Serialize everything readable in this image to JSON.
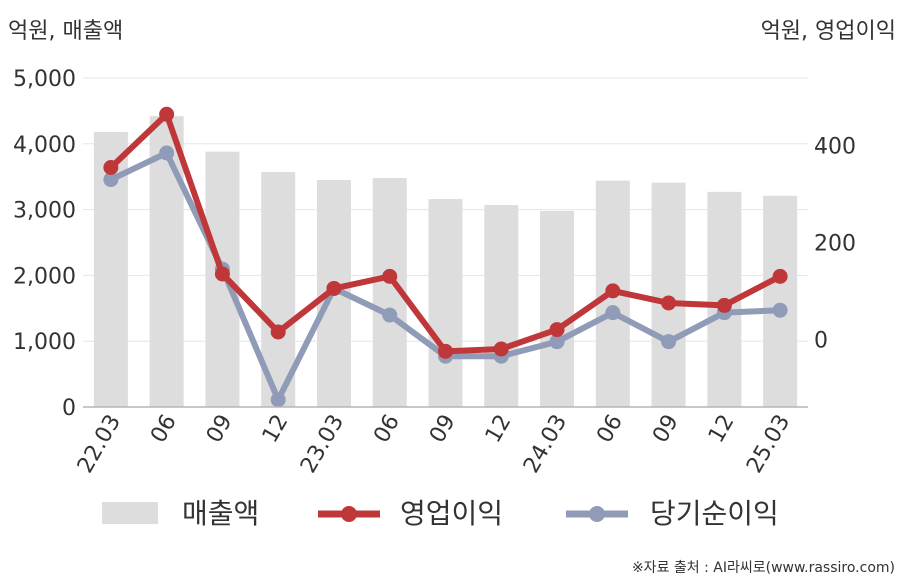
{
  "chart_data": {
    "type": "bar+line",
    "left_unit": "억원, 매출액",
    "right_unit": "억원, 영업이익",
    "categories": [
      "22.03",
      "06",
      "09",
      "12",
      "23.03",
      "06",
      "09",
      "12",
      "24.03",
      "06",
      "09",
      "12",
      "25.03"
    ],
    "left_axis": {
      "ylim": [
        0,
        5000
      ],
      "ticks": [
        "0",
        "1,000",
        "2,000",
        "3,000",
        "4,000",
        "5,000"
      ],
      "tick_values": [
        0,
        1000,
        2000,
        3000,
        4000,
        5000
      ]
    },
    "right_axis": {
      "ylim": [
        -140,
        540
      ],
      "ticks": [
        "0",
        "200",
        "400"
      ],
      "tick_values": [
        0,
        200,
        400
      ]
    },
    "series": [
      {
        "name": "매출액",
        "type": "bar",
        "axis": "left",
        "color": "#dddddd",
        "values": [
          4180,
          4420,
          3880,
          3570,
          3450,
          3480,
          3160,
          3070,
          2980,
          3440,
          3410,
          3270,
          3210
        ]
      },
      {
        "name": "영업이익",
        "type": "line",
        "axis": "right",
        "color": "#c0373a",
        "values": [
          355,
          465,
          135,
          15,
          105,
          130,
          -25,
          -20,
          20,
          100,
          75,
          70,
          130
        ]
      },
      {
        "name": "당기순이익",
        "type": "line",
        "axis": "right",
        "color": "#8f9bb7",
        "values": [
          330,
          385,
          145,
          -125,
          105,
          50,
          -35,
          -35,
          -5,
          55,
          -5,
          55,
          60
        ]
      }
    ],
    "grid": true,
    "legend_position": "bottom",
    "source": "※자료 출처 : AI라씨로(www.rassiro.com)"
  }
}
